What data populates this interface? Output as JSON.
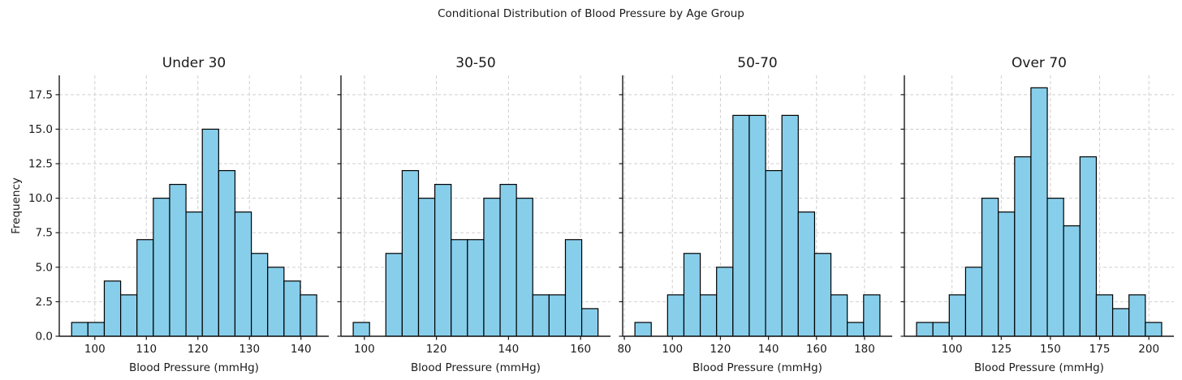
{
  "figure": {
    "title": "Conditional Distribution of Blood Pressure by Age Group",
    "xlabel": "Blood Pressure (mmHg)",
    "ylabel": "Frequency",
    "yticks": [
      0.0,
      2.5,
      5.0,
      7.5,
      10.0,
      12.5,
      15.0,
      17.5
    ],
    "ylim": [
      0,
      18.9
    ],
    "colors": {
      "bar_fill": "#87CEEB",
      "bar_edge": "#000000",
      "grid": "#cfcfcf",
      "spine": "#1a1a1a",
      "text": "#1a1a1a"
    }
  },
  "chart_data": [
    {
      "type": "histogram",
      "title": "Under 30",
      "bin_start": 95.5,
      "bin_width": 3.17,
      "counts": [
        1,
        1,
        4,
        3,
        7,
        10,
        11,
        9,
        15,
        12,
        9,
        6,
        5,
        4,
        3
      ],
      "xticks": [
        100,
        110,
        120,
        130,
        140
      ],
      "xlim": [
        93.1,
        145.4
      ],
      "show_y_labels": true
    },
    {
      "type": "histogram",
      "title": "30-50",
      "bin_start": 96.9,
      "bin_width": 4.53,
      "counts": [
        1,
        0,
        6,
        12,
        10,
        11,
        7,
        7,
        10,
        11,
        10,
        3,
        3,
        7,
        2
      ],
      "xticks": [
        100,
        120,
        140,
        160
      ],
      "xlim": [
        93.5,
        168.3
      ],
      "show_y_labels": false
    },
    {
      "type": "histogram",
      "title": "50-70",
      "bin_start": 84.4,
      "bin_width": 6.8,
      "counts": [
        1,
        0,
        3,
        6,
        3,
        5,
        16,
        16,
        12,
        16,
        9,
        6,
        3,
        1,
        3
      ],
      "xticks": [
        80,
        100,
        120,
        140,
        160,
        180
      ],
      "xlim": [
        79.3,
        191.5
      ],
      "show_y_labels": false
    },
    {
      "type": "histogram",
      "title": "Over 70",
      "bin_start": 82.0,
      "bin_width": 8.3,
      "counts": [
        1,
        1,
        3,
        5,
        10,
        9,
        13,
        18,
        10,
        8,
        13,
        3,
        2,
        3,
        1
      ],
      "xticks": [
        100,
        125,
        150,
        175,
        200
      ],
      "xlim": [
        75.8,
        212.7
      ],
      "show_y_labels": false
    }
  ]
}
